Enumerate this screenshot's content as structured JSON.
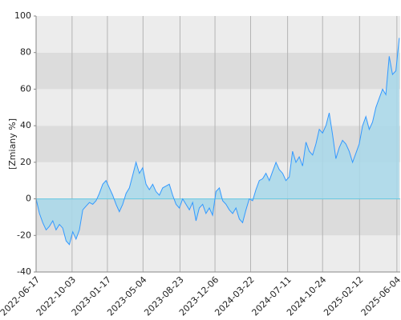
{
  "chart_data": {
    "type": "line",
    "y_label": "[Zmiany %]",
    "x": [
      "2022-06-17",
      "2022-06-27",
      "2022-07-07",
      "2022-07-17",
      "2022-07-27",
      "2022-08-06",
      "2022-08-16",
      "2022-08-26",
      "2022-09-05",
      "2022-09-15",
      "2022-09-25",
      "2022-10-05",
      "2022-10-15",
      "2022-10-25",
      "2022-11-04",
      "2022-11-14",
      "2022-11-24",
      "2022-12-04",
      "2022-12-14",
      "2022-12-24",
      "2023-01-03",
      "2023-01-13",
      "2023-01-23",
      "2023-02-02",
      "2023-02-12",
      "2023-02-22",
      "2023-03-04",
      "2023-03-14",
      "2023-03-24",
      "2023-04-03",
      "2023-04-13",
      "2023-04-23",
      "2023-05-03",
      "2023-05-13",
      "2023-05-23",
      "2023-06-02",
      "2023-06-12",
      "2023-06-22",
      "2023-07-02",
      "2023-07-12",
      "2023-07-22",
      "2023-08-01",
      "2023-08-11",
      "2023-08-21",
      "2023-08-31",
      "2023-09-10",
      "2023-09-20",
      "2023-09-30",
      "2023-10-10",
      "2023-10-20",
      "2023-10-30",
      "2023-11-09",
      "2023-11-19",
      "2023-11-29",
      "2023-12-09",
      "2023-12-19",
      "2023-12-29",
      "2024-01-08",
      "2024-01-18",
      "2024-01-28",
      "2024-02-07",
      "2024-02-17",
      "2024-02-27",
      "2024-03-08",
      "2024-03-18",
      "2024-03-28",
      "2024-04-07",
      "2024-04-17",
      "2024-04-27",
      "2024-05-07",
      "2024-05-17",
      "2024-05-27",
      "2024-06-06",
      "2024-06-16",
      "2024-06-26",
      "2024-07-06",
      "2024-07-16",
      "2024-07-26",
      "2024-08-05",
      "2024-08-15",
      "2024-08-25",
      "2024-09-04",
      "2024-09-14",
      "2024-09-24",
      "2024-10-04",
      "2024-10-14",
      "2024-10-24",
      "2024-11-03",
      "2024-11-13",
      "2024-11-23",
      "2024-12-03",
      "2024-12-13",
      "2024-12-23",
      "2025-01-02",
      "2025-01-12",
      "2025-01-22",
      "2025-02-01",
      "2025-02-11",
      "2025-02-21",
      "2025-03-03",
      "2025-03-13",
      "2025-03-23",
      "2025-04-02",
      "2025-04-12",
      "2025-04-22",
      "2025-05-02",
      "2025-05-12",
      "2025-05-22",
      "2025-06-01",
      "2025-06-11"
    ],
    "values": [
      0,
      -8,
      -13,
      -17,
      -15,
      -12,
      -17,
      -14,
      -16,
      -23,
      -25,
      -18,
      -22,
      -17,
      -6,
      -4,
      -2,
      -3,
      -1,
      3,
      8,
      10,
      6,
      2,
      -3,
      -7,
      -3,
      3,
      6,
      13,
      20,
      14,
      17,
      8,
      5,
      8,
      4,
      2,
      6,
      7,
      8,
      2,
      -3,
      -5,
      0,
      -3,
      -6,
      -2,
      -12,
      -5,
      -3,
      -8,
      -5,
      -9,
      4,
      6,
      -1,
      -3,
      -6,
      -8,
      -5,
      -11,
      -13,
      -6,
      0,
      -1,
      5,
      10,
      11,
      14,
      10,
      15,
      20,
      16,
      14,
      10,
      12,
      26,
      20,
      23,
      18,
      31,
      26,
      24,
      30,
      38,
      36,
      40,
      47,
      35,
      22,
      28,
      32,
      30,
      26,
      20,
      25,
      30,
      40,
      45,
      38,
      42,
      50,
      55,
      60,
      57,
      78,
      68,
      70,
      88
    ],
    "color": "#3399ff",
    "fill_color": "#a8d8ea",
    "zero_line_color": "#66c8e0",
    "xlim": [
      "2022-06-17",
      "2025-06-14"
    ],
    "xticks": [
      "2022-06-17",
      "2022-10-03",
      "2023-01-17",
      "2023-05-04",
      "2023-08-23",
      "2023-12-06",
      "2024-03-22",
      "2024-07-11",
      "2024-10-24",
      "2025-02-12",
      "2025-06-04"
    ],
    "ylim": [
      -40,
      100
    ],
    "yticks": [
      -40,
      -20,
      0,
      20,
      40,
      60,
      80,
      100
    ],
    "grid": true
  }
}
